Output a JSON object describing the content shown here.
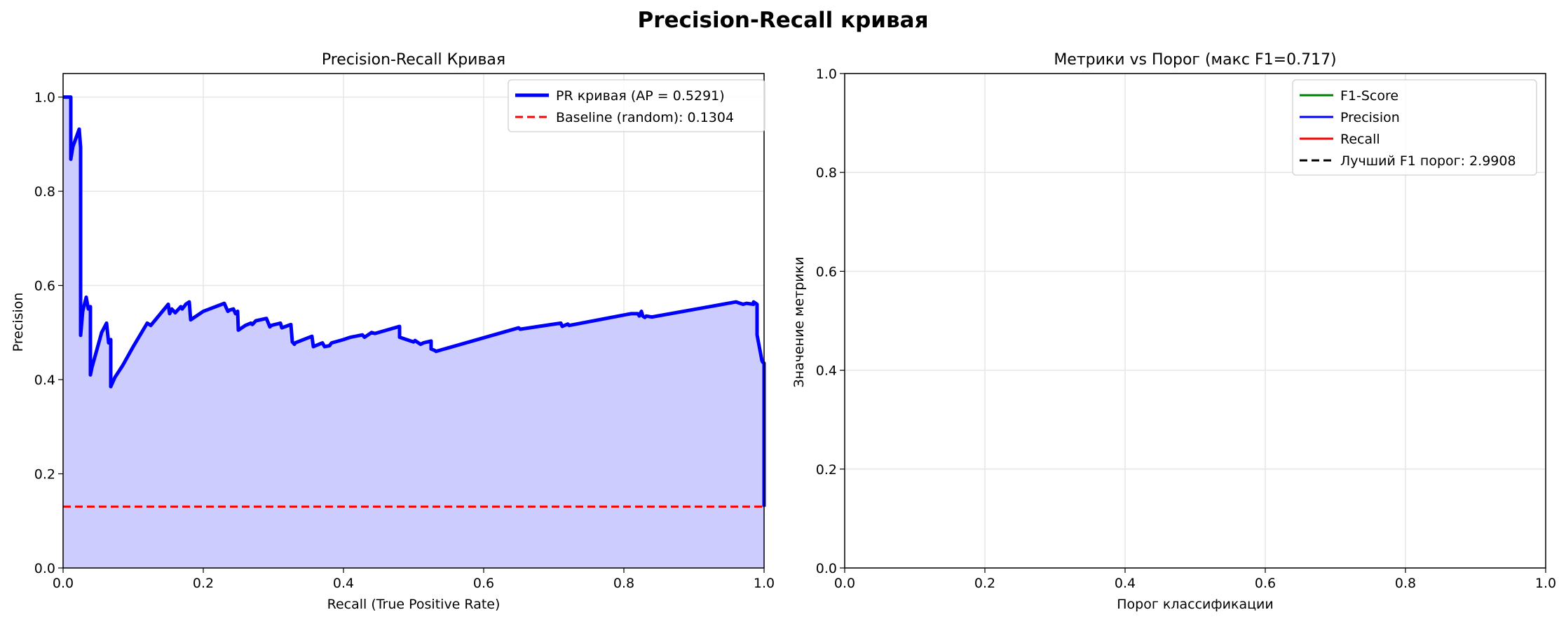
{
  "figure": {
    "suptitle": "Precision-Recall кривая"
  },
  "chart_data": [
    {
      "type": "area",
      "title": "Precision-Recall Кривая",
      "xlabel": "Recall (True Positive Rate)",
      "ylabel": "Precision",
      "xlim": [
        0,
        1
      ],
      "ylim": [
        0,
        1.05
      ],
      "xticks": [
        "0.0",
        "0.2",
        "0.4",
        "0.6",
        "0.8",
        "1.0"
      ],
      "yticks": [
        "0.0",
        "0.2",
        "0.4",
        "0.6",
        "0.8",
        "1.0"
      ],
      "grid": true,
      "legend_position": "upper right",
      "series": [
        {
          "name": "PR кривая (AP = 0.5291)",
          "style": "solid",
          "color": "#0000ff",
          "fill_color": "#ccccff",
          "x": [
            0.0,
            0.0,
            0.011,
            0.011,
            0.014,
            0.023,
            0.025,
            0.025,
            0.028,
            0.033,
            0.036,
            0.039,
            0.039,
            0.041,
            0.055,
            0.062,
            0.065,
            0.065,
            0.068,
            0.068,
            0.074,
            0.085,
            0.1,
            0.12,
            0.125,
            0.15,
            0.152,
            0.155,
            0.16,
            0.168,
            0.17,
            0.175,
            0.18,
            0.182,
            0.2,
            0.23,
            0.235,
            0.238,
            0.243,
            0.246,
            0.249,
            0.25,
            0.26,
            0.268,
            0.27,
            0.275,
            0.29,
            0.295,
            0.297,
            0.31,
            0.312,
            0.325,
            0.327,
            0.33,
            0.331,
            0.355,
            0.357,
            0.37,
            0.373,
            0.38,
            0.383,
            0.4,
            0.41,
            0.427,
            0.43,
            0.44,
            0.445,
            0.48,
            0.48,
            0.5,
            0.502,
            0.51,
            0.514,
            0.525,
            0.525,
            0.53,
            0.532,
            0.65,
            0.652,
            0.71,
            0.712,
            0.72,
            0.722,
            0.81,
            0.82,
            0.822,
            0.825,
            0.827,
            0.83,
            0.832,
            0.84,
            0.96,
            0.97,
            0.975,
            0.985,
            0.985,
            0.99,
            0.99,
            0.997,
            0.998,
            1.0,
            1.0
          ],
          "y": [
            1.0,
            1.0,
            1.0,
            0.868,
            0.895,
            0.932,
            0.893,
            0.494,
            0.545,
            0.575,
            0.55,
            0.555,
            0.41,
            0.425,
            0.5,
            0.52,
            0.478,
            0.48,
            0.485,
            0.385,
            0.405,
            0.43,
            0.47,
            0.52,
            0.515,
            0.56,
            0.54,
            0.55,
            0.542,
            0.555,
            0.55,
            0.56,
            0.565,
            0.527,
            0.545,
            0.562,
            0.545,
            0.548,
            0.55,
            0.54,
            0.545,
            0.505,
            0.515,
            0.52,
            0.517,
            0.525,
            0.53,
            0.512,
            0.515,
            0.52,
            0.51,
            0.517,
            0.48,
            0.475,
            0.478,
            0.492,
            0.47,
            0.478,
            0.47,
            0.472,
            0.478,
            0.485,
            0.49,
            0.495,
            0.49,
            0.5,
            0.498,
            0.513,
            0.49,
            0.48,
            0.483,
            0.475,
            0.478,
            0.482,
            0.465,
            0.462,
            0.46,
            0.51,
            0.507,
            0.52,
            0.513,
            0.518,
            0.515,
            0.54,
            0.54,
            0.535,
            0.545,
            0.535,
            0.532,
            0.535,
            0.533,
            0.565,
            0.56,
            0.562,
            0.56,
            0.565,
            0.56,
            0.495,
            0.44,
            0.437,
            0.435,
            0.13
          ]
        },
        {
          "name": "Baseline (random): 0.1304",
          "style": "dashed",
          "color": "#ff0000",
          "x": [
            0,
            1
          ],
          "y": [
            0.1304,
            0.1304
          ]
        }
      ]
    },
    {
      "type": "line",
      "title": "Метрики vs Порог (макс F1=0.717)",
      "xlabel": "Порог классификации",
      "ylabel": "Значение метрики",
      "xlim": [
        0,
        1
      ],
      "ylim": [
        0,
        1
      ],
      "xticks": [
        "0.0",
        "0.2",
        "0.4",
        "0.6",
        "0.8",
        "1.0"
      ],
      "yticks": [
        "0.0",
        "0.2",
        "0.4",
        "0.6",
        "0.8",
        "1.0"
      ],
      "grid": true,
      "legend_position": "upper right",
      "series": [
        {
          "name": "F1-Score",
          "style": "solid",
          "color": "#008000",
          "x": [],
          "y": []
        },
        {
          "name": "Precision",
          "style": "solid",
          "color": "#0000ff",
          "x": [],
          "y": []
        },
        {
          "name": "Recall",
          "style": "solid",
          "color": "#ff0000",
          "x": [],
          "y": []
        },
        {
          "name": "Лучший F1 порог: 2.9908",
          "style": "dashed",
          "color": "#000000",
          "x": [],
          "y": []
        }
      ]
    }
  ]
}
